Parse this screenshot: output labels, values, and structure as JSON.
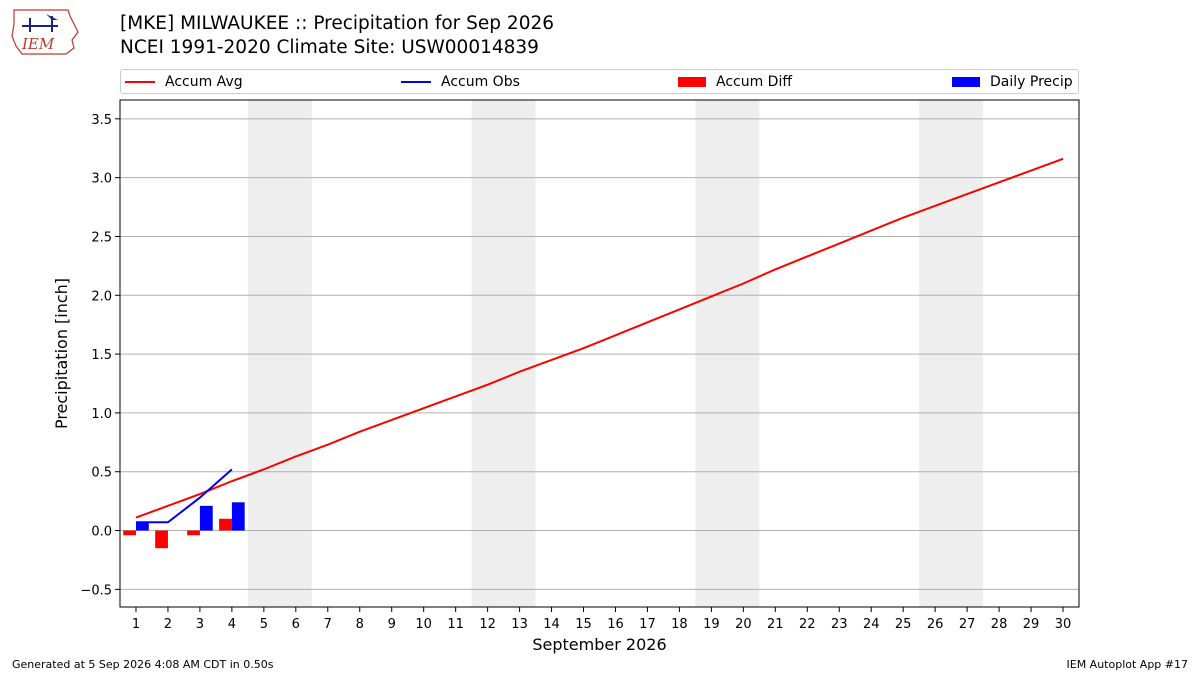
{
  "header": {
    "title_line1": "[MKE] MILWAUKEE :: Precipitation for Sep 2026",
    "title_line2": "NCEI 1991-2020 Climate Site: USW00014839"
  },
  "logo": {
    "text": "IEM",
    "icon": "iem-iowa-logo"
  },
  "legend": {
    "items": [
      {
        "label": "Accum Avg",
        "kind": "line",
        "color": "#ff0000"
      },
      {
        "label": "Accum Obs",
        "kind": "line",
        "color": "#0000ff"
      },
      {
        "label": "Accum Diff",
        "kind": "box",
        "color": "#ff0000"
      },
      {
        "label": "Daily Precip",
        "kind": "box",
        "color": "#0000ff"
      }
    ],
    "placement": "top"
  },
  "chart_data": {
    "type": "line",
    "xlabel": "September 2026",
    "ylabel": "Precipitation [inch]",
    "xlim": [
      0.5,
      30.5
    ],
    "ylim": [
      -0.65,
      3.66
    ],
    "x_ticks": [
      1,
      2,
      3,
      4,
      5,
      6,
      7,
      8,
      9,
      10,
      11,
      12,
      13,
      14,
      15,
      16,
      17,
      18,
      19,
      20,
      21,
      22,
      23,
      24,
      25,
      26,
      27,
      28,
      29,
      30
    ],
    "y_ticks": [
      -0.5,
      0.0,
      0.5,
      1.0,
      1.5,
      2.0,
      2.5,
      3.0,
      3.5
    ],
    "y_tick_labels": [
      "−0.5",
      "0.0",
      "0.5",
      "1.0",
      "1.5",
      "2.0",
      "2.5",
      "3.0",
      "3.5"
    ],
    "grid": "horizontal",
    "weekend_shading": [
      [
        4.5,
        6.5
      ],
      [
        11.5,
        13.5
      ],
      [
        18.5,
        20.5
      ],
      [
        25.5,
        27.5
      ]
    ],
    "series": [
      {
        "name": "Accum Avg",
        "kind": "line",
        "color": "#ff0000",
        "x": [
          1,
          2,
          3,
          4,
          5,
          6,
          7,
          8,
          9,
          10,
          11,
          12,
          13,
          14,
          15,
          16,
          17,
          18,
          19,
          20,
          21,
          22,
          23,
          24,
          25,
          26,
          27,
          28,
          29,
          30
        ],
        "values": [
          0.11,
          0.21,
          0.31,
          0.42,
          0.52,
          0.63,
          0.73,
          0.84,
          0.94,
          1.04,
          1.14,
          1.24,
          1.35,
          1.45,
          1.55,
          1.66,
          1.77,
          1.88,
          1.99,
          2.1,
          2.22,
          2.33,
          2.44,
          2.55,
          2.66,
          2.76,
          2.86,
          2.96,
          3.06,
          3.16
        ]
      },
      {
        "name": "Accum Obs",
        "kind": "line",
        "color": "#0000ff",
        "x": [
          1,
          2,
          3,
          4
        ],
        "values": [
          0.07,
          0.07,
          0.28,
          0.52
        ]
      },
      {
        "name": "Accum Diff",
        "kind": "bar",
        "color": "#ff0000",
        "offset": -0.2,
        "x": [
          1,
          2,
          3,
          4
        ],
        "values": [
          -0.04,
          -0.15,
          -0.04,
          0.1
        ]
      },
      {
        "name": "Daily Precip",
        "kind": "bar",
        "color": "#0000ff",
        "offset": 0.2,
        "x": [
          1,
          2,
          3,
          4
        ],
        "values": [
          0.07,
          0.0,
          0.21,
          0.24
        ]
      }
    ]
  },
  "footer": {
    "left": "Generated at 5 Sep 2026 4:08 AM CDT in 0.50s",
    "right": "IEM Autoplot App #17"
  }
}
